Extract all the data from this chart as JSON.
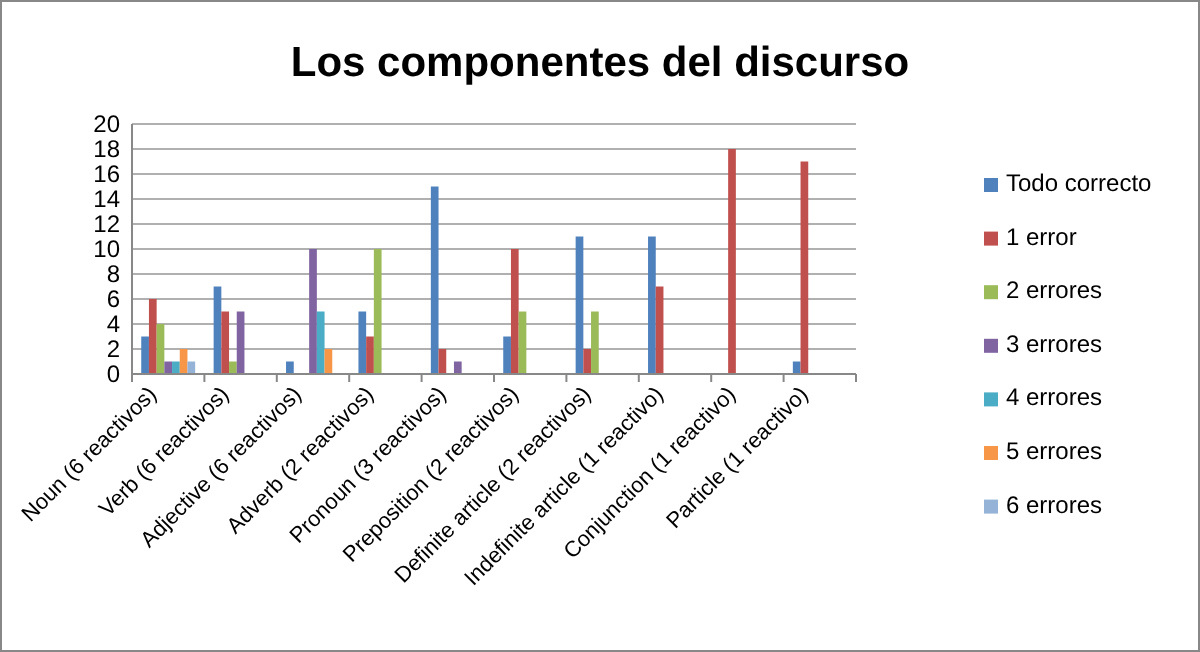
{
  "chart_data": {
    "type": "bar",
    "title": "Los componentes del discurso",
    "categories": [
      "Noun (6 reactivos)",
      "Verb (6 reactivos)",
      "Adjective (6 reactivos)",
      "Adverb (2 reactivos)",
      "Pronoun (3 reactivos)",
      "Preposition (2 reactivos)",
      "Definite article (2 reactivos)",
      "Indefinite article (1 reactivo)",
      "Conjunction (1 reactivo)",
      "Particle (1 reactivo)"
    ],
    "series": [
      {
        "name": "Todo correcto",
        "color": "#4f81bd",
        "values": [
          3,
          7,
          1,
          5,
          15,
          3,
          11,
          11,
          null,
          1
        ]
      },
      {
        "name": "1 error",
        "color": "#c0504d",
        "values": [
          6,
          5,
          null,
          3,
          2,
          10,
          2,
          7,
          18,
          17
        ]
      },
      {
        "name": "2 errores",
        "color": "#9bbb59",
        "values": [
          4,
          1,
          null,
          10,
          null,
          5,
          5,
          null,
          null,
          null
        ]
      },
      {
        "name": "3 errores",
        "color": "#8064a2",
        "values": [
          1,
          5,
          10,
          null,
          1,
          null,
          null,
          null,
          null,
          null
        ]
      },
      {
        "name": "4 errores",
        "color": "#4bacc6",
        "values": [
          1,
          null,
          5,
          null,
          null,
          null,
          null,
          null,
          null,
          null
        ]
      },
      {
        "name": "5 errores",
        "color": "#f79646",
        "values": [
          2,
          null,
          2,
          null,
          null,
          null,
          null,
          null,
          null,
          null
        ]
      },
      {
        "name": "6 errores",
        "color": "#95b3d7",
        "values": [
          1,
          null,
          null,
          null,
          null,
          null,
          null,
          null,
          null,
          null
        ]
      }
    ],
    "ylim": [
      0,
      20
    ],
    "yticks": [
      0,
      2,
      4,
      6,
      8,
      10,
      12,
      14,
      16,
      18,
      20
    ],
    "grid": "y",
    "legend": "right"
  }
}
